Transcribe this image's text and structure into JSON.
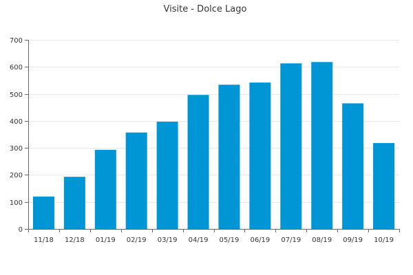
{
  "chart_data": {
    "type": "bar",
    "title": "Visite - Dolce Lago",
    "xlabel": "",
    "ylabel": "",
    "categories": [
      "11/18",
      "12/18",
      "01/19",
      "02/19",
      "03/19",
      "04/19",
      "05/19",
      "06/19",
      "07/19",
      "08/19",
      "09/19",
      "10/19"
    ],
    "values": [
      120,
      193,
      293,
      357,
      397,
      496,
      534,
      542,
      613,
      618,
      465,
      318
    ],
    "ylim": [
      0,
      700
    ],
    "yticks": [
      0,
      100,
      200,
      300,
      400,
      500,
      600,
      700
    ],
    "grid": true,
    "legend": "none",
    "bar_color": "#0096d6"
  }
}
